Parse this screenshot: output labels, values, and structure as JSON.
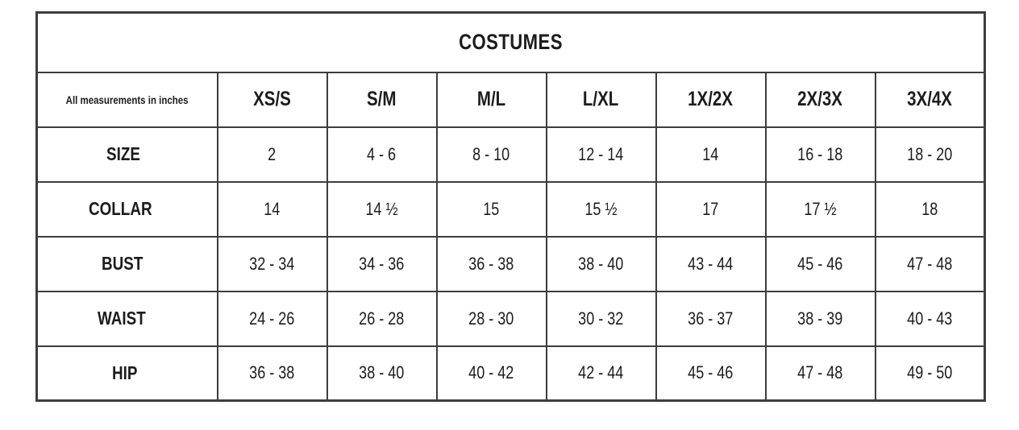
{
  "chart_data": {
    "type": "table",
    "title": "COSTUMES",
    "note": "All measurements in inches",
    "columns": [
      "XS/S",
      "S/M",
      "M/L",
      "L/XL",
      "1X/2X",
      "2X/3X",
      "3X/4X"
    ],
    "rows": [
      {
        "label": "SIZE",
        "values": [
          "2",
          "4 - 6",
          "8 - 10",
          "12 - 14",
          "14",
          "16 - 18",
          "18 - 20"
        ]
      },
      {
        "label": "COLLAR",
        "values": [
          "14",
          "14 ½",
          "15",
          "15 ½",
          "17",
          "17 ½",
          "18"
        ]
      },
      {
        "label": "BUST",
        "values": [
          "32 - 34",
          "34 - 36",
          "36 - 38",
          "38 - 40",
          "43 - 44",
          "45 - 46",
          "47 - 48"
        ]
      },
      {
        "label": "WAIST",
        "values": [
          "24 - 26",
          "26 - 28",
          "28 - 30",
          "30 - 32",
          "36 - 37",
          "38 - 39",
          "40 - 43"
        ]
      },
      {
        "label": "HIP",
        "values": [
          "36 - 38",
          "38 - 40",
          "40 - 42",
          "42 - 44",
          "45 - 46",
          "47 - 48",
          "49 - 50"
        ]
      }
    ],
    "layout": {
      "units": "inches",
      "header_position": "top",
      "grid": true
    },
    "colors": {
      "header_bg": "#c9c9c9",
      "border": "#3d3d3d",
      "text": "#1c1c1c"
    }
  }
}
